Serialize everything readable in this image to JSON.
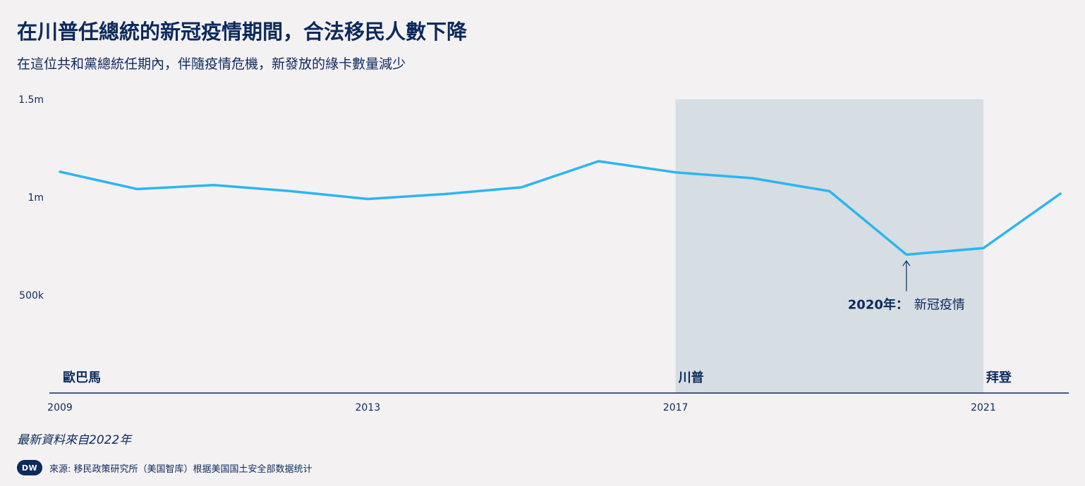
{
  "title": "在川普任總統的新冠疫情期間，合法移民人數下降",
  "subtitle": "在這位共和黨總統任期內，伴隨疫情危機，新發放的綠卡數量減少",
  "note": "最新資料來自2022年",
  "source": "來源: 移民政策研究所（美国智库）根据美国国土安全部数据统计",
  "logo_text": "DW",
  "colors": {
    "line": "#2bb6f0",
    "text": "#0c2a5b",
    "shade": "#d6dde3",
    "background": "#f4f1f3"
  },
  "chart_data": {
    "type": "line",
    "x": [
      2009,
      2010,
      2011,
      2012,
      2013,
      2014,
      2015,
      2016,
      2017,
      2018,
      2019,
      2020,
      2021,
      2022
    ],
    "series": [
      {
        "values": [
          1130000,
          1042000,
          1062000,
          1031000,
          991000,
          1016000,
          1051000,
          1184000,
          1127000,
          1097000,
          1031000,
          707000,
          740000,
          1018000
        ]
      }
    ],
    "ylim": [
      0,
      1500000
    ],
    "xlim": [
      2009,
      2022.5
    ],
    "y_ticks": [
      {
        "value": 1500000,
        "label": "1.5m"
      },
      {
        "value": 1000000,
        "label": "1m"
      },
      {
        "value": 500000,
        "label": "500k"
      }
    ],
    "x_ticks": [
      {
        "value": 2009,
        "label": "2009"
      },
      {
        "value": 2013,
        "label": "2013"
      },
      {
        "value": 2017,
        "label": "2017"
      },
      {
        "value": 2021,
        "label": "2021"
      }
    ],
    "shaded_range": [
      2017,
      2021
    ],
    "presidents": [
      {
        "x": 2009,
        "label": "歐巴馬"
      },
      {
        "x": 2017,
        "label": "川普"
      },
      {
        "x": 2021,
        "label": "拜登"
      }
    ],
    "annotation": {
      "x": 2020,
      "y": 707000,
      "bold": "2020年：",
      "text": "新冠疫情"
    },
    "grid": false
  }
}
